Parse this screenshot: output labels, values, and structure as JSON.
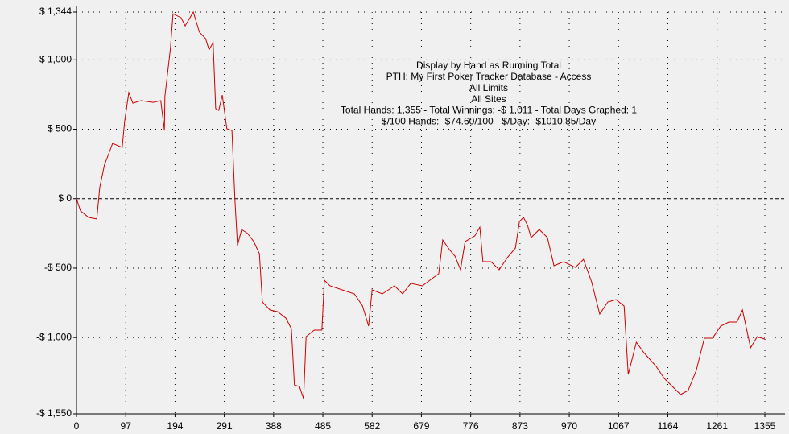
{
  "chart_data": {
    "type": "line",
    "title": "Display by Hand as Running Total",
    "subtitle_lines": [
      "PTH: My First Poker Tracker Database - Access",
      "All Limits",
      "All Sites",
      "Total Hands: 1,355 - Total Winnings: -$ 1,011 - Total Days Graphed: 1",
      "$/100 Hands: -$74.60/100 - $/Day: -$1010.85/Day"
    ],
    "x": [
      0,
      8,
      24,
      40,
      46,
      55,
      67,
      71,
      90,
      95,
      103,
      111,
      127,
      151,
      166,
      173,
      174,
      185,
      190,
      206,
      214,
      230,
      242,
      254,
      261,
      269,
      274,
      280,
      287,
      296,
      306,
      312,
      317,
      325,
      337,
      349,
      360,
      366,
      381,
      396,
      412,
      423,
      429,
      439,
      447,
      452,
      468,
      483,
      488,
      499,
      523,
      547,
      563,
      575,
      582,
      602,
      626,
      642,
      658,
      681,
      702,
      713,
      721,
      734,
      745,
      756,
      765,
      784,
      794,
      800,
      816,
      832,
      848,
      864,
      872,
      880,
      888,
      895,
      911,
      927,
      940,
      959,
      982,
      998,
      1014,
      1030,
      1046,
      1062,
      1078,
      1086,
      1102,
      1117,
      1141,
      1157,
      1173,
      1189,
      1204,
      1220,
      1236,
      1252,
      1268,
      1284,
      1300,
      1311,
      1327,
      1340,
      1355
    ],
    "series": [
      {
        "name": "Running Total",
        "color": "#cc0000",
        "values": [
          0,
          -88,
          -135,
          -146,
          85,
          242,
          358,
          398,
          369,
          561,
          764,
          688,
          706,
          694,
          706,
          491,
          735,
          1083,
          1332,
          1303,
          1245,
          1344,
          1199,
          1153,
          1072,
          1124,
          648,
          636,
          746,
          503,
          491,
          -19,
          -338,
          -222,
          -251,
          -309,
          -396,
          -744,
          -802,
          -814,
          -860,
          -936,
          -1342,
          -1354,
          -1441,
          -994,
          -947,
          -947,
          -587,
          -628,
          -657,
          -686,
          -773,
          -918,
          -657,
          -686,
          -628,
          -686,
          -610,
          -628,
          -570,
          -541,
          -297,
          -367,
          -413,
          -512,
          -309,
          -268,
          -205,
          -454,
          -454,
          -512,
          -425,
          -355,
          -164,
          -135,
          -193,
          -280,
          -222,
          -280,
          -483,
          -454,
          -495,
          -437,
          -599,
          -831,
          -744,
          -727,
          -773,
          -1266,
          -1034,
          -1109,
          -1208,
          -1295,
          -1353,
          -1411,
          -1382,
          -1237,
          -1005,
          -1005,
          -918,
          -889,
          -889,
          -802,
          -1074,
          -994,
          -1011
        ]
      }
    ],
    "xlim": [
      0,
      1355
    ],
    "xticks": [
      0,
      97,
      194,
      291,
      388,
      485,
      582,
      679,
      776,
      873,
      970,
      1067,
      1164,
      1261,
      1355
    ],
    "ylim": [
      -1550,
      1344
    ],
    "yticks": [
      {
        "value": 1344,
        "label": "$ 1,344"
      },
      {
        "value": 1000,
        "label": "$ 1,000"
      },
      {
        "value": 500,
        "label": "$ 500"
      },
      {
        "value": 0,
        "label": "$ 0"
      },
      {
        "value": -500,
        "label": "-$ 500"
      },
      {
        "value": -1000,
        "label": "-$ 1,000"
      },
      {
        "value": -1550,
        "label": "-$ 1,550"
      }
    ],
    "grid": true
  }
}
